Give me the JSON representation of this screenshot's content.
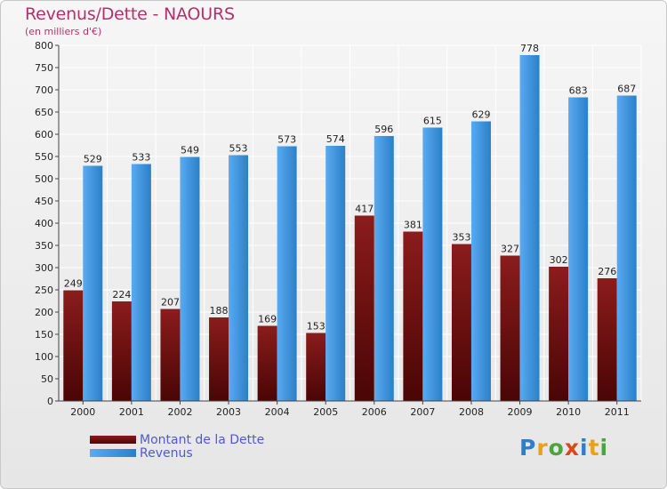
{
  "header": {
    "title": "Revenus/Dette - NAOURS",
    "subtitle": "(en milliers d'€)"
  },
  "logo": {
    "text": "Proxiti"
  },
  "colors": {
    "dette": "#7a1010",
    "revenus": "#3a95e0",
    "title": "#b5306a",
    "legend_text": "#5058d8"
  },
  "chart_data": {
    "type": "bar",
    "title": "Revenus/Dette - NAOURS",
    "subtitle": "(en milliers d'€)",
    "xlabel": "",
    "ylabel": "",
    "categories": [
      "2000",
      "2001",
      "2002",
      "2003",
      "2004",
      "2005",
      "2006",
      "2007",
      "2008",
      "2009",
      "2010",
      "2011"
    ],
    "series": [
      {
        "name": "Montant de la Dette",
        "values": [
          249,
          224,
          207,
          188,
          169,
          153,
          417,
          381,
          353,
          327,
          302,
          276
        ]
      },
      {
        "name": "Revenus",
        "values": [
          529,
          533,
          549,
          553,
          573,
          574,
          596,
          615,
          629,
          778,
          683,
          687
        ]
      }
    ],
    "ylim": [
      0,
      800
    ],
    "yticks": [
      0,
      50,
      100,
      150,
      200,
      250,
      300,
      350,
      400,
      450,
      500,
      550,
      600,
      650,
      700,
      750,
      800
    ],
    "grid": true,
    "legend_position": "bottom-left"
  }
}
